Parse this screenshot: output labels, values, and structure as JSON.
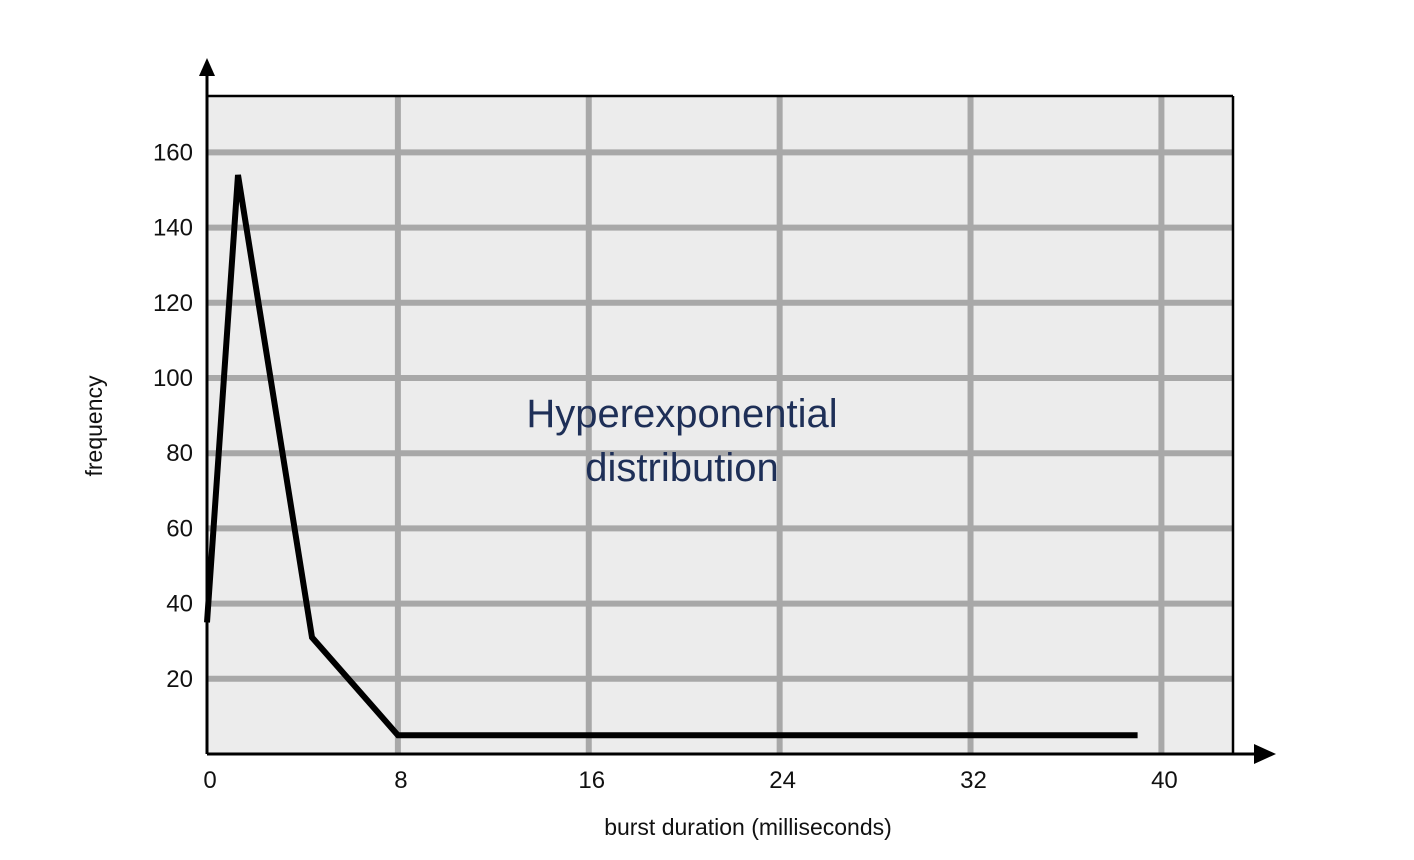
{
  "chart_data": {
    "type": "line",
    "xlabel": "burst duration (milliseconds)",
    "ylabel": "frequency",
    "annotation": [
      "Hyperexponential",
      "distribution"
    ],
    "xlim": [
      0,
      43
    ],
    "ylim": [
      0,
      175
    ],
    "x_ticks": [
      0,
      8,
      16,
      24,
      32,
      40
    ],
    "y_ticks": [
      20,
      40,
      60,
      80,
      100,
      120,
      140,
      160
    ],
    "grid": true,
    "series": [
      {
        "x": [
          0,
          1.3,
          4.4,
          8,
          39
        ],
        "y": [
          35,
          154,
          31,
          5,
          5
        ]
      }
    ],
    "colors": {
      "plot_background": "#ececec",
      "grid": "#a8a8a8",
      "line": "#000000",
      "annotation": "#1e2f57"
    }
  }
}
